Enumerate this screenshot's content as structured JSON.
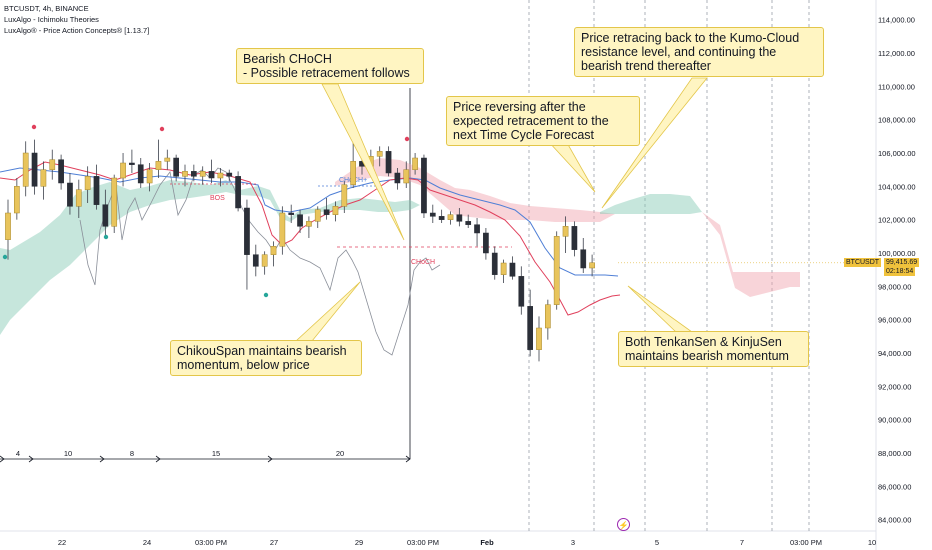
{
  "legend": {
    "symbol": "BTCUSDT, 4h, BINANCE",
    "indicator_1": "LuxAlgo - Ichimoku Theories",
    "indicator_2": "LuxAlgo® - Price Action Concepts® [1.13.7]"
  },
  "annotations": {
    "choch_top": [
      "Bearish CHoCH",
      "- Possible retracement follows"
    ],
    "kumo": [
      "Price retracing back to the Kumo-Cloud",
      "resistance level, and continuing the",
      "bearish trend thereafter"
    ],
    "reversal": [
      "Price reversing after the",
      "expected retracement to the",
      "next Time Cycle Forecast"
    ],
    "chikou": [
      "ChikouSpan maintains bearish",
      "momentum, below price"
    ],
    "tenkan": [
      "Both TenkanSen & KinjuSen",
      "maintains bearish momentum"
    ]
  },
  "structure_labels": {
    "bos": "BOS",
    "choch_plus": "CHoCH+",
    "choch_red": "CHoCH"
  },
  "price_tags": {
    "ticker": "BTCUSDT",
    "last_price": "99,415.69",
    "countdown": "02:18:54"
  },
  "cycle_counts": [
    "4",
    "10",
    "8",
    "15",
    "20"
  ],
  "chart_data": {
    "type": "candlestick",
    "symbol": "BTCUSDT",
    "interval": "4h",
    "exchange": "BINANCE",
    "ylim": [
      83000,
      116000
    ],
    "y_ticks": [
      "84,000.00",
      "86,000.00",
      "88,000.00",
      "90,000.00",
      "92,000.00",
      "94,000.00",
      "96,000.00",
      "98,000.00",
      "100,000.00",
      "102,000.00",
      "104,000.00",
      "106,000.00",
      "108,000.00",
      "110,000.00",
      "112,000.00",
      "114,000.00"
    ],
    "x_ticks": [
      "22",
      "24",
      "03:00 PM",
      "27",
      "29",
      "03:00 PM",
      "Feb",
      "3",
      "5",
      "7",
      "03:00 PM",
      "10"
    ],
    "candles": [
      [
        100800,
        103200,
        99600,
        102400
      ],
      [
        102400,
        104500,
        102000,
        104000
      ],
      [
        104000,
        106700,
        103400,
        106000
      ],
      [
        106000,
        106800,
        103500,
        104000
      ],
      [
        104000,
        105500,
        103200,
        105000
      ],
      [
        105000,
        106200,
        104400,
        105600
      ],
      [
        105600,
        105900,
        103800,
        104200
      ],
      [
        104200,
        104800,
        102300,
        102800
      ],
      [
        102800,
        104400,
        102100,
        103800
      ],
      [
        103800,
        105200,
        103000,
        104600
      ],
      [
        104600,
        105300,
        102600,
        102900
      ],
      [
        102900,
        103800,
        101000,
        101600
      ],
      [
        101600,
        104700,
        101200,
        104500
      ],
      [
        104500,
        106000,
        104000,
        105400
      ],
      [
        105400,
        106200,
        104800,
        105300
      ],
      [
        105300,
        105700,
        103900,
        104200
      ],
      [
        104200,
        105400,
        103700,
        105000
      ],
      [
        105000,
        106800,
        104500,
        105500
      ],
      [
        105500,
        106200,
        105000,
        105700
      ],
      [
        105700,
        105900,
        104300,
        104600
      ],
      [
        104600,
        105300,
        104000,
        104900
      ],
      [
        104900,
        105300,
        104300,
        104600
      ],
      [
        104600,
        105200,
        104100,
        104900
      ],
      [
        104900,
        105600,
        104200,
        104500
      ],
      [
        104500,
        105100,
        104000,
        104800
      ],
      [
        104800,
        105000,
        104300,
        104600
      ],
      [
        104600,
        104900,
        102500,
        102700
      ],
      [
        102700,
        103200,
        97800,
        99900
      ],
      [
        99900,
        100500,
        98600,
        99200
      ],
      [
        99200,
        100100,
        98700,
        99900
      ],
      [
        99900,
        100700,
        99200,
        100400
      ],
      [
        100400,
        102800,
        99900,
        102400
      ],
      [
        102400,
        102900,
        101800,
        102300
      ],
      [
        102300,
        102600,
        101200,
        101600
      ],
      [
        101600,
        102200,
        100900,
        101900
      ],
      [
        101900,
        102800,
        101500,
        102600
      ],
      [
        102600,
        103300,
        102000,
        102300
      ],
      [
        102300,
        103100,
        101900,
        102800
      ],
      [
        102800,
        104300,
        102400,
        104100
      ],
      [
        104100,
        106900,
        103900,
        105500
      ],
      [
        105500,
        105900,
        104700,
        105200
      ],
      [
        105200,
        106200,
        104900,
        105800
      ],
      [
        105800,
        106400,
        105200,
        106100
      ],
      [
        106100,
        106400,
        104600,
        104800
      ],
      [
        104800,
        105100,
        103800,
        104200
      ],
      [
        104200,
        105500,
        103900,
        105000
      ],
      [
        105000,
        106000,
        104700,
        105700
      ],
      [
        105700,
        105900,
        102100,
        102400
      ],
      [
        102400,
        102900,
        101800,
        102200
      ],
      [
        102200,
        102600,
        101800,
        102000
      ],
      [
        102000,
        102500,
        101700,
        102300
      ],
      [
        102300,
        102700,
        101600,
        101900
      ],
      [
        101900,
        102300,
        101500,
        101700
      ],
      [
        101700,
        102100,
        100400,
        101200
      ],
      [
        101200,
        101500,
        99600,
        100000
      ],
      [
        100000,
        100400,
        98400,
        98700
      ],
      [
        98700,
        99600,
        98200,
        99400
      ],
      [
        99400,
        99800,
        98400,
        98600
      ],
      [
        98600,
        99200,
        96300,
        96800
      ],
      [
        96800,
        97800,
        93800,
        94200
      ],
      [
        94200,
        96200,
        93500,
        95500
      ],
      [
        95500,
        97200,
        94800,
        96900
      ],
      [
        96900,
        101300,
        96600,
        101000
      ],
      [
        101000,
        102200,
        100000,
        101600
      ],
      [
        101600,
        101900,
        99800,
        100200
      ],
      [
        100200,
        100900,
        98800,
        99100
      ],
      [
        99100,
        99900,
        98600,
        99416
      ]
    ],
    "series": [
      {
        "name": "TenkanSen"
      },
      {
        "name": "KijunSen"
      },
      {
        "name": "ChikouSpan"
      },
      {
        "name": "Senkou Span A"
      },
      {
        "name": "Senkou Span B"
      }
    ],
    "last_price": 99415.69
  }
}
